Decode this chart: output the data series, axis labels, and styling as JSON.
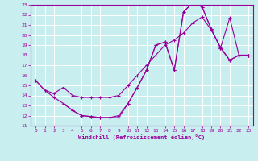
{
  "xlabel": "Windchill (Refroidissement éolien,°C)",
  "bg_color": "#c8eef0",
  "line_color": "#990099",
  "grid_color": "#ffffff",
  "xlim": [
    -0.5,
    23.5
  ],
  "ylim": [
    11,
    23
  ],
  "xticks": [
    0,
    1,
    2,
    3,
    4,
    5,
    6,
    7,
    8,
    9,
    10,
    11,
    12,
    13,
    14,
    15,
    16,
    17,
    18,
    19,
    20,
    21,
    22,
    23
  ],
  "yticks": [
    11,
    12,
    13,
    14,
    15,
    16,
    17,
    18,
    19,
    20,
    21,
    22,
    23
  ],
  "curves": [
    {
      "x": [
        0,
        1,
        2,
        3,
        4,
        5,
        6,
        7,
        8,
        9,
        10,
        11,
        12,
        13,
        14,
        15,
        16,
        17,
        18,
        19,
        20,
        21,
        22,
        23
      ],
      "y": [
        15.5,
        14.5,
        13.8,
        13.2,
        12.5,
        12.0,
        11.9,
        11.8,
        11.8,
        12.0,
        13.2,
        14.8,
        16.5,
        19.0,
        19.3,
        16.5,
        22.3,
        23.2,
        22.8,
        20.6,
        18.7,
        21.7,
        18.0,
        18.0
      ]
    },
    {
      "x": [
        0,
        1,
        2,
        3,
        4,
        5,
        6,
        7,
        8,
        9,
        10,
        11,
        12,
        13,
        14,
        15,
        16,
        17,
        18,
        19,
        20,
        21,
        22,
        23
      ],
      "y": [
        15.5,
        14.5,
        14.2,
        14.8,
        14.0,
        13.8,
        13.8,
        13.8,
        13.8,
        14.0,
        15.0,
        16.0,
        17.0,
        18.0,
        19.0,
        19.5,
        20.2,
        21.2,
        21.8,
        20.5,
        18.8,
        17.5,
        18.0,
        18.0
      ]
    },
    {
      "x": [
        3,
        4,
        5,
        6,
        7,
        8,
        9,
        10,
        11,
        12,
        13,
        14,
        15,
        16,
        17,
        18,
        19,
        20,
        21,
        22,
        23
      ],
      "y": [
        13.2,
        12.5,
        12.0,
        11.9,
        11.8,
        11.8,
        11.8,
        13.2,
        14.8,
        16.5,
        19.0,
        19.3,
        16.5,
        22.3,
        23.2,
        22.8,
        20.6,
        18.7,
        17.5,
        18.0,
        18.0
      ]
    }
  ]
}
